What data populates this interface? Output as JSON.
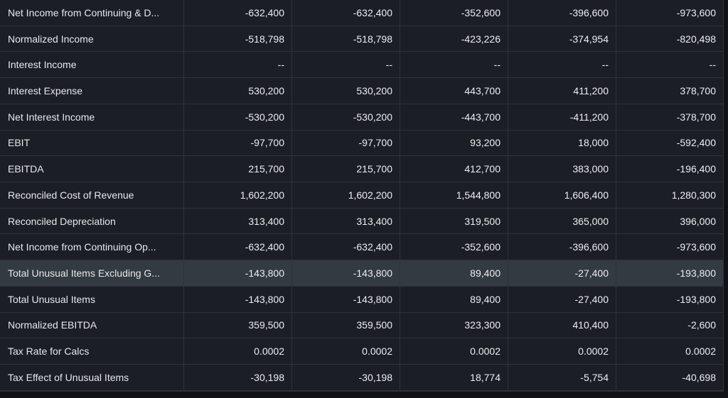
{
  "table": {
    "rows": [
      {
        "label": "Net Income from Continuing & D...",
        "values": [
          "-632,400",
          "-632,400",
          "-352,600",
          "-396,600",
          "-973,600"
        ]
      },
      {
        "label": "Normalized Income",
        "values": [
          "-518,798",
          "-518,798",
          "-423,226",
          "-374,954",
          "-820,498"
        ]
      },
      {
        "label": "Interest Income",
        "values": [
          "--",
          "--",
          "--",
          "--",
          "--"
        ]
      },
      {
        "label": "Interest Expense",
        "values": [
          "530,200",
          "530,200",
          "443,700",
          "411,200",
          "378,700"
        ]
      },
      {
        "label": "Net Interest Income",
        "values": [
          "-530,200",
          "-530,200",
          "-443,700",
          "-411,200",
          "-378,700"
        ]
      },
      {
        "label": "EBIT",
        "values": [
          "-97,700",
          "-97,700",
          "93,200",
          "18,000",
          "-592,400"
        ]
      },
      {
        "label": "EBITDA",
        "values": [
          "215,700",
          "215,700",
          "412,700",
          "383,000",
          "-196,400"
        ]
      },
      {
        "label": "Reconciled Cost of Revenue",
        "values": [
          "1,602,200",
          "1,602,200",
          "1,544,800",
          "1,606,400",
          "1,280,300"
        ]
      },
      {
        "label": "Reconciled Depreciation",
        "values": [
          "313,400",
          "313,400",
          "319,500",
          "365,000",
          "396,000"
        ]
      },
      {
        "label": "Net Income from Continuing Op...",
        "values": [
          "-632,400",
          "-632,400",
          "-352,600",
          "-396,600",
          "-973,600"
        ]
      },
      {
        "label": "Total Unusual Items Excluding G...",
        "values": [
          "-143,800",
          "-143,800",
          "89,400",
          "-27,400",
          "-193,800"
        ]
      },
      {
        "label": "Total Unusual Items",
        "values": [
          "-143,800",
          "-143,800",
          "89,400",
          "-27,400",
          "-193,800"
        ]
      },
      {
        "label": "Normalized EBITDA",
        "values": [
          "359,500",
          "359,500",
          "323,300",
          "410,400",
          "-2,600"
        ]
      },
      {
        "label": "Tax Rate for Calcs",
        "values": [
          "0.0002",
          "0.0002",
          "0.0002",
          "0.0002",
          "0.0002"
        ]
      },
      {
        "label": "Tax Effect of Unusual Items",
        "values": [
          "-30,198",
          "-30,198",
          "18,774",
          "-5,754",
          "-40,698"
        ]
      }
    ],
    "highlighted_row_label": "Total Unusual Items Excluding G...",
    "colors": {
      "background": "#1b1e25",
      "grid_lines": "#2e323b",
      "highlight": "#343a42",
      "text": "#e8eaed"
    }
  }
}
